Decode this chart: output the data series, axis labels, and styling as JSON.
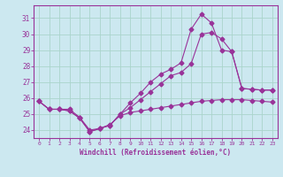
{
  "xlabel": "Windchill (Refroidissement éolien,°C)",
  "bg_color": "#cce8f0",
  "grid_color": "#aad4cc",
  "line_color": "#993399",
  "xlim": [
    -0.5,
    23.5
  ],
  "ylim": [
    23.5,
    31.8
  ],
  "yticks": [
    24,
    25,
    26,
    27,
    28,
    29,
    30,
    31
  ],
  "xticks": [
    0,
    1,
    2,
    3,
    4,
    5,
    6,
    7,
    8,
    9,
    10,
    11,
    12,
    13,
    14,
    15,
    16,
    17,
    18,
    19,
    20,
    21,
    22,
    23
  ],
  "line1_x": [
    0,
    1,
    2,
    3,
    4,
    5,
    6,
    7,
    8,
    9,
    10,
    11,
    12,
    13,
    14,
    15,
    16,
    17,
    18,
    19,
    20,
    21,
    22,
    23
  ],
  "line1_y": [
    25.8,
    25.3,
    25.3,
    25.3,
    24.8,
    24.0,
    24.1,
    24.35,
    24.9,
    25.1,
    25.2,
    25.3,
    25.4,
    25.5,
    25.6,
    25.7,
    25.8,
    25.85,
    25.9,
    25.9,
    25.9,
    25.85,
    25.8,
    25.75
  ],
  "line2_x": [
    0,
    1,
    2,
    3,
    4,
    5,
    6,
    7,
    8,
    9,
    10,
    11,
    12,
    13,
    14,
    15,
    16,
    17,
    18,
    19,
    20,
    21,
    22,
    23
  ],
  "line2_y": [
    25.8,
    25.3,
    25.3,
    25.2,
    24.75,
    23.9,
    24.1,
    24.3,
    25.0,
    25.4,
    25.9,
    26.4,
    26.9,
    27.4,
    27.6,
    28.15,
    30.0,
    30.1,
    29.7,
    28.9,
    26.6,
    26.55,
    26.5,
    26.5
  ],
  "line3_x": [
    0,
    1,
    2,
    3,
    4,
    5,
    6,
    7,
    8,
    9,
    10,
    11,
    12,
    13,
    14,
    15,
    16,
    17,
    18,
    19,
    20,
    21,
    22,
    23
  ],
  "line3_y": [
    25.8,
    25.3,
    25.3,
    25.2,
    24.75,
    23.9,
    24.1,
    24.3,
    25.0,
    25.7,
    26.3,
    27.0,
    27.5,
    27.8,
    28.2,
    30.3,
    31.25,
    30.7,
    29.0,
    28.9,
    26.6,
    26.55,
    26.5,
    26.5
  ]
}
